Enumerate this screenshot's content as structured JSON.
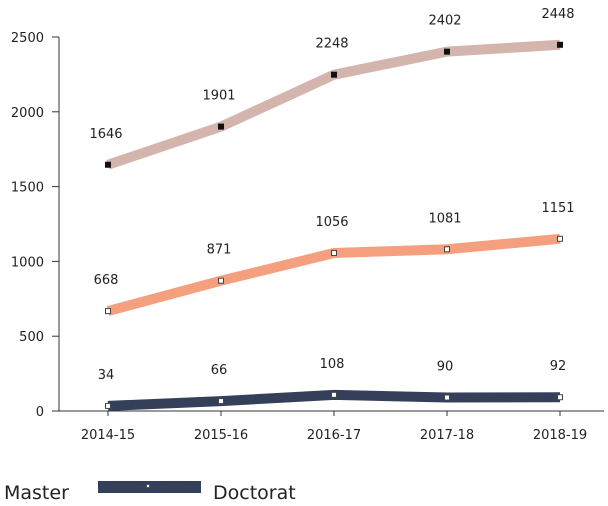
{
  "chart_data": {
    "type": "line",
    "categories": [
      "2014-15",
      "2015-16",
      "2016-17",
      "2017-18",
      "2018-19"
    ],
    "series": [
      {
        "name": "",
        "values": [
          1646,
          1901,
          2248,
          2402,
          2448
        ],
        "color": "#d4b5ae"
      },
      {
        "name": "",
        "values": [
          668,
          871,
          1056,
          1081,
          1151
        ],
        "color": "#f4a07f"
      },
      {
        "name": "",
        "values": [
          34,
          66,
          108,
          90,
          92
        ],
        "color": "#34405a"
      }
    ],
    "ylim": [
      0,
      2500
    ],
    "yticks": [
      "0",
      "500",
      "1000",
      "1500",
      "2000",
      "2500"
    ],
    "legend_position": "bottom-left",
    "grid": false
  },
  "legend": {
    "item1": "Master",
    "item2": "Doctorat"
  }
}
